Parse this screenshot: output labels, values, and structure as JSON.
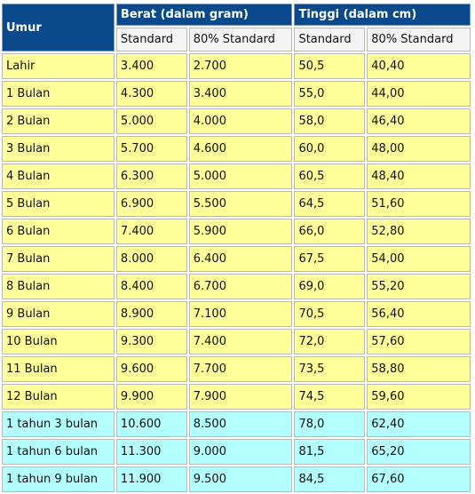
{
  "header": {
    "age_label": "Umur",
    "weight_group": "Berat (dalam gram)",
    "height_group": "Tinggi (dalam cm)",
    "weight_std": "Standard",
    "weight_80": "80% Standard",
    "height_std": "Standard",
    "height_80": "80% Standard"
  },
  "rows": [
    {
      "age": "Lahir",
      "w_std": "3.400",
      "w_80": "2.700",
      "h_std": "50,5",
      "h_80": "40,40",
      "band": "yellow"
    },
    {
      "age": "1 Bulan",
      "w_std": "4.300",
      "w_80": "3.400",
      "h_std": "55,0",
      "h_80": "44,00",
      "band": "yellow"
    },
    {
      "age": "2 Bulan",
      "w_std": "5.000",
      "w_80": "4.000",
      "h_std": "58,0",
      "h_80": "46,40",
      "band": "yellow"
    },
    {
      "age": "3 Bulan",
      "w_std": "5.700",
      "w_80": "4.600",
      "h_std": "60,0",
      "h_80": "48,00",
      "band": "yellow"
    },
    {
      "age": "4 Bulan",
      "w_std": "6.300",
      "w_80": "5.000",
      "h_std": "60,5",
      "h_80": "48,40",
      "band": "yellow"
    },
    {
      "age": "5 Bulan",
      "w_std": "6.900",
      "w_80": "5.500",
      "h_std": "64,5",
      "h_80": "51,60",
      "band": "yellow"
    },
    {
      "age": "6 Bulan",
      "w_std": "7.400",
      "w_80": "5.900",
      "h_std": "66,0",
      "h_80": "52,80",
      "band": "yellow"
    },
    {
      "age": "7 Bulan",
      "w_std": "8.000",
      "w_80": "6.400",
      "h_std": "67,5",
      "h_80": "54,00",
      "band": "yellow"
    },
    {
      "age": "8 Bulan",
      "w_std": "8.400",
      "w_80": "6.700",
      "h_std": "69,0",
      "h_80": "55,20",
      "band": "yellow"
    },
    {
      "age": "9 Bulan",
      "w_std": "8.900",
      "w_80": "7.100",
      "h_std": "70,5",
      "h_80": "56,40",
      "band": "yellow"
    },
    {
      "age": "10 Bulan",
      "w_std": "9.300",
      "w_80": "7.400",
      "h_std": "72,0",
      "h_80": "57,60",
      "band": "yellow"
    },
    {
      "age": "11 Bulan",
      "w_std": "9.600",
      "w_80": "7.700",
      "h_std": "73,5",
      "h_80": "58,80",
      "band": "yellow"
    },
    {
      "age": "12 Bulan",
      "w_std": "9.900",
      "w_80": "7.900",
      "h_std": "74,5",
      "h_80": "59,60",
      "band": "yellow"
    },
    {
      "age": "1 tahun 3 bulan",
      "w_std": "10.600",
      "w_80": "8.500",
      "h_std": "78,0",
      "h_80": "62,40",
      "band": "cyan"
    },
    {
      "age": "1 tahun 6 bulan",
      "w_std": "11.300",
      "w_80": "9.000",
      "h_std": "81,5",
      "h_80": "65,20",
      "band": "cyan"
    },
    {
      "age": "1 tahun 9 bulan",
      "w_std": "11.900",
      "w_80": "9.500",
      "h_std": "84,5",
      "h_80": "67,60",
      "band": "cyan"
    }
  ],
  "colors": {
    "header_bg": "#0a4a8c",
    "row_yellow": "#ffff99",
    "row_cyan": "#b3ffff"
  }
}
